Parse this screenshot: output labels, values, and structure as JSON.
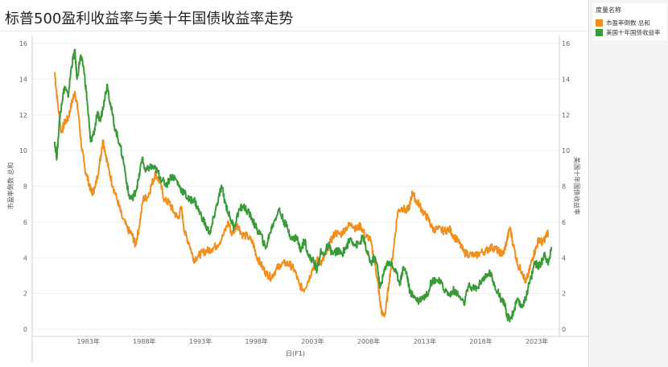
{
  "title": "标普500盈利收益率与美十年国债收益率走势",
  "legend": {
    "title": "度量名称",
    "items": [
      {
        "label": "市盈率倒数 总和",
        "color": "#f28e1c"
      },
      {
        "label": "美国十年国债收益率",
        "color": "#3a9a3a"
      }
    ]
  },
  "chart_data": {
    "type": "line",
    "title": "标普500盈利收益率与美十年国债收益率走势",
    "xlabel": "日(F1)",
    "ylabel_left": "市盈率倒数 总和",
    "ylabel_right": "美国十年国债收益率",
    "xlim": [
      1978.0,
      2025.0
    ],
    "ylim": [
      0,
      16
    ],
    "y_ticks": [
      0,
      2,
      4,
      6,
      8,
      10,
      12,
      14,
      16
    ],
    "x_ticks": [
      {
        "value": 1983.0,
        "label": "1983年"
      },
      {
        "value": 1988.0,
        "label": "1988年"
      },
      {
        "value": 1993.0,
        "label": "1993年"
      },
      {
        "value": 1998.0,
        "label": "1998年"
      },
      {
        "value": 2003.0,
        "label": "2003年"
      },
      {
        "value": 2008.0,
        "label": "2008年"
      },
      {
        "value": 2013.0,
        "label": "2013年"
      },
      {
        "value": 2018.0,
        "label": "2018年"
      },
      {
        "value": 2023.0,
        "label": "2023年"
      }
    ],
    "grid": true,
    "series": [
      {
        "name": "市盈率倒数 总和",
        "color": "#f28e1c",
        "axis": "left",
        "points": [
          [
            1980.0,
            14.4
          ],
          [
            1980.3,
            12.5
          ],
          [
            1980.6,
            11.0
          ],
          [
            1980.9,
            11.6
          ],
          [
            1981.2,
            11.8
          ],
          [
            1981.5,
            12.6
          ],
          [
            1981.8,
            13.3
          ],
          [
            1982.1,
            12.2
          ],
          [
            1982.4,
            10.2
          ],
          [
            1982.7,
            9.0
          ],
          [
            1983.0,
            8.3
          ],
          [
            1983.3,
            7.6
          ],
          [
            1983.6,
            7.9
          ],
          [
            1984.0,
            9.2
          ],
          [
            1984.3,
            10.6
          ],
          [
            1984.5,
            10.0
          ],
          [
            1984.8,
            9.0
          ],
          [
            1985.2,
            8.0
          ],
          [
            1985.6,
            7.2
          ],
          [
            1986.0,
            6.3
          ],
          [
            1986.5,
            5.6
          ],
          [
            1986.9,
            5.3
          ],
          [
            1987.2,
            4.7
          ],
          [
            1987.5,
            5.6
          ],
          [
            1987.9,
            7.3
          ],
          [
            1988.3,
            7.4
          ],
          [
            1988.7,
            8.2
          ],
          [
            1989.0,
            8.7
          ],
          [
            1989.4,
            8.2
          ],
          [
            1989.8,
            7.2
          ],
          [
            1990.2,
            7.1
          ],
          [
            1990.6,
            6.6
          ],
          [
            1991.0,
            6.2
          ],
          [
            1991.3,
            6.8
          ],
          [
            1991.6,
            5.4
          ],
          [
            1992.0,
            4.8
          ],
          [
            1992.4,
            3.9
          ],
          [
            1992.8,
            4.1
          ],
          [
            1993.2,
            4.3
          ],
          [
            1993.6,
            4.4
          ],
          [
            1994.0,
            4.5
          ],
          [
            1994.5,
            4.7
          ],
          [
            1995.0,
            5.2
          ],
          [
            1995.5,
            6.0
          ],
          [
            1995.8,
            5.3
          ],
          [
            1996.3,
            5.9
          ],
          [
            1996.7,
            5.3
          ],
          [
            1997.2,
            5.2
          ],
          [
            1997.7,
            4.8
          ],
          [
            1998.0,
            4.1
          ],
          [
            1998.5,
            3.5
          ],
          [
            1998.9,
            3.1
          ],
          [
            1999.3,
            2.9
          ],
          [
            1999.7,
            3.3
          ],
          [
            2000.1,
            3.6
          ],
          [
            2000.6,
            3.7
          ],
          [
            2001.0,
            3.6
          ],
          [
            2001.4,
            3.3
          ],
          [
            2001.8,
            2.5
          ],
          [
            2002.2,
            2.2
          ],
          [
            2002.6,
            2.7
          ],
          [
            2003.0,
            3.4
          ],
          [
            2003.4,
            3.9
          ],
          [
            2003.8,
            3.7
          ],
          [
            2004.2,
            4.2
          ],
          [
            2004.6,
            4.9
          ],
          [
            2005.0,
            5.4
          ],
          [
            2005.5,
            5.3
          ],
          [
            2006.0,
            5.7
          ],
          [
            2006.5,
            5.9
          ],
          [
            2006.9,
            5.6
          ],
          [
            2007.3,
            5.8
          ],
          [
            2007.7,
            5.2
          ],
          [
            2008.1,
            5.1
          ],
          [
            2008.5,
            3.9
          ],
          [
            2008.8,
            2.7
          ],
          [
            2009.0,
            1.6
          ],
          [
            2009.2,
            0.8
          ],
          [
            2009.5,
            0.9
          ],
          [
            2009.8,
            2.6
          ],
          [
            2010.2,
            4.4
          ],
          [
            2010.6,
            6.6
          ],
          [
            2011.0,
            6.8
          ],
          [
            2011.4,
            6.6
          ],
          [
            2011.7,
            7.0
          ],
          [
            2011.9,
            7.7
          ],
          [
            2012.2,
            7.2
          ],
          [
            2012.5,
            7.0
          ],
          [
            2012.9,
            6.5
          ],
          [
            2013.3,
            6.2
          ],
          [
            2013.7,
            5.6
          ],
          [
            2014.2,
            5.6
          ],
          [
            2014.7,
            5.5
          ],
          [
            2015.2,
            5.6
          ],
          [
            2015.6,
            5.2
          ],
          [
            2016.0,
            4.9
          ],
          [
            2016.5,
            4.3
          ],
          [
            2017.0,
            4.2
          ],
          [
            2017.5,
            4.1
          ],
          [
            2018.0,
            4.3
          ],
          [
            2018.5,
            4.4
          ],
          [
            2018.9,
            4.6
          ],
          [
            2019.3,
            4.5
          ],
          [
            2019.7,
            4.3
          ],
          [
            2020.0,
            4.2
          ],
          [
            2020.3,
            4.9
          ],
          [
            2020.6,
            5.7
          ],
          [
            2020.9,
            4.7
          ],
          [
            2021.3,
            3.6
          ],
          [
            2021.7,
            3.2
          ],
          [
            2022.0,
            2.6
          ],
          [
            2022.3,
            3.2
          ],
          [
            2022.6,
            4.0
          ],
          [
            2022.9,
            4.5
          ],
          [
            2023.2,
            5.1
          ],
          [
            2023.5,
            4.8
          ],
          [
            2023.8,
            5.2
          ],
          [
            2024.0,
            5.4
          ]
        ]
      },
      {
        "name": "美国十年国债收益率",
        "color": "#3a9a3a",
        "axis": "right",
        "points": [
          [
            1980.0,
            10.5
          ],
          [
            1980.2,
            9.6
          ],
          [
            1980.4,
            11.4
          ],
          [
            1980.6,
            12.6
          ],
          [
            1980.9,
            13.6
          ],
          [
            1981.2,
            13.0
          ],
          [
            1981.5,
            14.7
          ],
          [
            1981.8,
            15.6
          ],
          [
            1982.0,
            14.0
          ],
          [
            1982.3,
            15.3
          ],
          [
            1982.6,
            14.6
          ],
          [
            1982.9,
            12.8
          ],
          [
            1983.2,
            10.5
          ],
          [
            1983.5,
            11.0
          ],
          [
            1983.8,
            12.0
          ],
          [
            1984.1,
            11.7
          ],
          [
            1984.4,
            12.8
          ],
          [
            1984.7,
            13.7
          ],
          [
            1985.0,
            12.5
          ],
          [
            1985.4,
            11.2
          ],
          [
            1985.8,
            10.4
          ],
          [
            1986.2,
            9.2
          ],
          [
            1986.6,
            7.5
          ],
          [
            1986.9,
            7.3
          ],
          [
            1987.2,
            7.7
          ],
          [
            1987.5,
            8.4
          ],
          [
            1987.8,
            9.6
          ],
          [
            1988.1,
            8.8
          ],
          [
            1988.5,
            9.1
          ],
          [
            1988.9,
            9.0
          ],
          [
            1989.2,
            8.8
          ],
          [
            1989.6,
            8.3
          ],
          [
            1990.0,
            8.1
          ],
          [
            1990.4,
            8.6
          ],
          [
            1990.8,
            8.4
          ],
          [
            1991.2,
            7.9
          ],
          [
            1991.6,
            7.6
          ],
          [
            1992.0,
            7.2
          ],
          [
            1992.4,
            7.3
          ],
          [
            1992.8,
            6.7
          ],
          [
            1993.2,
            6.2
          ],
          [
            1993.6,
            5.6
          ],
          [
            1993.9,
            5.4
          ],
          [
            1994.2,
            6.3
          ],
          [
            1994.6,
            7.3
          ],
          [
            1994.9,
            8.0
          ],
          [
            1995.2,
            7.1
          ],
          [
            1995.6,
            6.3
          ],
          [
            1996.0,
            5.7
          ],
          [
            1996.4,
            6.6
          ],
          [
            1996.8,
            6.9
          ],
          [
            1997.2,
            6.6
          ],
          [
            1997.6,
            6.2
          ],
          [
            1998.0,
            5.6
          ],
          [
            1998.4,
            5.3
          ],
          [
            1998.8,
            4.5
          ],
          [
            1999.2,
            5.4
          ],
          [
            1999.6,
            6.1
          ],
          [
            2000.0,
            6.7
          ],
          [
            2000.4,
            6.1
          ],
          [
            2000.8,
            5.6
          ],
          [
            2001.2,
            5.0
          ],
          [
            2001.6,
            5.2
          ],
          [
            2001.9,
            4.4
          ],
          [
            2002.3,
            5.0
          ],
          [
            2002.7,
            4.0
          ],
          [
            2003.0,
            3.9
          ],
          [
            2003.4,
            3.3
          ],
          [
            2003.7,
            4.3
          ],
          [
            2004.0,
            4.2
          ],
          [
            2004.4,
            4.7
          ],
          [
            2004.8,
            4.2
          ],
          [
            2005.2,
            4.4
          ],
          [
            2005.6,
            4.2
          ],
          [
            2006.0,
            4.6
          ],
          [
            2006.4,
            5.1
          ],
          [
            2006.8,
            4.7
          ],
          [
            2007.2,
            4.8
          ],
          [
            2007.5,
            5.2
          ],
          [
            2007.8,
            4.4
          ],
          [
            2008.2,
            3.7
          ],
          [
            2008.5,
            4.0
          ],
          [
            2008.8,
            3.5
          ],
          [
            2009.0,
            2.3
          ],
          [
            2009.3,
            3.0
          ],
          [
            2009.6,
            3.7
          ],
          [
            2010.0,
            3.7
          ],
          [
            2010.4,
            3.2
          ],
          [
            2010.8,
            2.6
          ],
          [
            2011.1,
            3.5
          ],
          [
            2011.4,
            3.1
          ],
          [
            2011.7,
            2.0
          ],
          [
            2012.0,
            1.9
          ],
          [
            2012.4,
            1.6
          ],
          [
            2012.8,
            1.8
          ],
          [
            2013.2,
            1.9
          ],
          [
            2013.6,
            2.7
          ],
          [
            2014.0,
            2.8
          ],
          [
            2014.4,
            2.6
          ],
          [
            2014.8,
            2.2
          ],
          [
            2015.2,
            1.9
          ],
          [
            2015.6,
            2.2
          ],
          [
            2016.0,
            1.9
          ],
          [
            2016.5,
            1.4
          ],
          [
            2016.9,
            2.4
          ],
          [
            2017.3,
            2.3
          ],
          [
            2017.7,
            2.3
          ],
          [
            2018.1,
            2.8
          ],
          [
            2018.5,
            2.9
          ],
          [
            2018.8,
            3.2
          ],
          [
            2019.1,
            2.7
          ],
          [
            2019.5,
            2.1
          ],
          [
            2019.8,
            1.7
          ],
          [
            2020.1,
            1.5
          ],
          [
            2020.3,
            0.7
          ],
          [
            2020.6,
            0.6
          ],
          [
            2020.9,
            0.9
          ],
          [
            2021.2,
            1.6
          ],
          [
            2021.6,
            1.3
          ],
          [
            2021.9,
            1.5
          ],
          [
            2022.2,
            2.3
          ],
          [
            2022.5,
            2.9
          ],
          [
            2022.8,
            3.8
          ],
          [
            2023.1,
            3.5
          ],
          [
            2023.4,
            3.7
          ],
          [
            2023.7,
            4.3
          ],
          [
            2024.0,
            3.6
          ],
          [
            2024.3,
            4.6
          ]
        ]
      }
    ]
  }
}
